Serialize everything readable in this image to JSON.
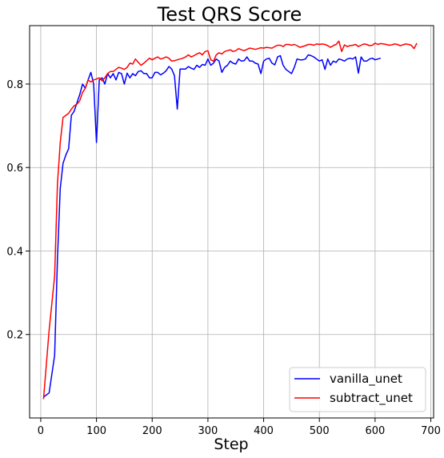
{
  "chart_data": {
    "type": "line",
    "title": "Test QRS Score",
    "xlabel": "Step",
    "ylabel": "",
    "xlim": [
      -20,
      705
    ],
    "ylim": [
      0.0,
      0.94
    ],
    "xticks": [
      0,
      100,
      200,
      300,
      400,
      500,
      600,
      700
    ],
    "yticks": [
      0.2,
      0.4,
      0.6,
      0.8
    ],
    "xtick_labels": [
      "0",
      "100",
      "200",
      "300",
      "400",
      "500",
      "600",
      "700"
    ],
    "ytick_labels": [
      "0.2",
      "0.4",
      "0.6",
      "0.8"
    ],
    "grid": true,
    "legend_position": "bottom-right",
    "series": [
      {
        "name": "vanilla_unet",
        "color": "#0000ff",
        "x": [
          5,
          15,
          25,
          30,
          35,
          40,
          45,
          50,
          55,
          60,
          65,
          70,
          75,
          80,
          85,
          90,
          95,
          100,
          105,
          110,
          115,
          120,
          125,
          130,
          135,
          140,
          145,
          150,
          155,
          160,
          165,
          170,
          175,
          180,
          185,
          190,
          195,
          200,
          205,
          210,
          215,
          220,
          225,
          230,
          235,
          240,
          245,
          250,
          255,
          260,
          265,
          270,
          275,
          280,
          285,
          290,
          295,
          300,
          305,
          310,
          315,
          320,
          325,
          330,
          335,
          340,
          345,
          350,
          355,
          360,
          365,
          370,
          375,
          380,
          385,
          390,
          395,
          400,
          405,
          410,
          415,
          420,
          425,
          430,
          435,
          440,
          445,
          450,
          455,
          460,
          465,
          470,
          475,
          480,
          485,
          490,
          495,
          500,
          505,
          510,
          515,
          520,
          525,
          530,
          535,
          540,
          545,
          550,
          555,
          560,
          565,
          570,
          575,
          580,
          585,
          590,
          595,
          600,
          605,
          610
        ],
        "y": [
          0.05,
          0.06,
          0.15,
          0.38,
          0.55,
          0.61,
          0.63,
          0.645,
          0.725,
          0.735,
          0.755,
          0.775,
          0.8,
          0.79,
          0.81,
          0.828,
          0.8,
          0.66,
          0.81,
          0.815,
          0.8,
          0.825,
          0.815,
          0.825,
          0.81,
          0.828,
          0.825,
          0.8,
          0.826,
          0.815,
          0.825,
          0.82,
          0.83,
          0.832,
          0.825,
          0.825,
          0.815,
          0.815,
          0.828,
          0.828,
          0.822,
          0.826,
          0.832,
          0.842,
          0.836,
          0.82,
          0.74,
          0.836,
          0.836,
          0.836,
          0.842,
          0.838,
          0.835,
          0.845,
          0.84,
          0.847,
          0.845,
          0.86,
          0.845,
          0.85,
          0.86,
          0.855,
          0.828,
          0.84,
          0.845,
          0.855,
          0.85,
          0.848,
          0.86,
          0.855,
          0.856,
          0.865,
          0.855,
          0.855,
          0.85,
          0.848,
          0.825,
          0.855,
          0.86,
          0.862,
          0.85,
          0.846,
          0.865,
          0.868,
          0.845,
          0.835,
          0.83,
          0.825,
          0.84,
          0.86,
          0.858,
          0.858,
          0.86,
          0.87,
          0.868,
          0.865,
          0.86,
          0.855,
          0.858,
          0.835,
          0.86,
          0.845,
          0.855,
          0.852,
          0.86,
          0.858,
          0.855,
          0.86,
          0.862,
          0.86,
          0.865,
          0.826,
          0.865,
          0.855,
          0.855,
          0.86,
          0.862,
          0.858,
          0.86,
          0.862
        ]
      },
      {
        "name": "subtract_unet",
        "color": "#ff0000",
        "x": [
          5,
          15,
          25,
          30,
          35,
          40,
          45,
          50,
          55,
          60,
          65,
          70,
          75,
          80,
          85,
          90,
          95,
          100,
          105,
          110,
          115,
          120,
          125,
          130,
          135,
          140,
          145,
          150,
          155,
          160,
          165,
          170,
          175,
          180,
          185,
          190,
          195,
          200,
          205,
          210,
          215,
          220,
          225,
          230,
          235,
          240,
          245,
          250,
          255,
          260,
          265,
          270,
          275,
          280,
          285,
          290,
          295,
          300,
          305,
          310,
          315,
          320,
          325,
          330,
          335,
          340,
          345,
          350,
          355,
          360,
          365,
          370,
          375,
          380,
          385,
          390,
          395,
          400,
          405,
          410,
          415,
          420,
          425,
          430,
          435,
          440,
          445,
          450,
          455,
          460,
          465,
          470,
          475,
          480,
          485,
          490,
          495,
          500,
          505,
          510,
          515,
          520,
          525,
          530,
          535,
          540,
          545,
          550,
          555,
          560,
          565,
          570,
          575,
          580,
          585,
          590,
          595,
          600,
          605,
          610,
          615,
          620,
          625,
          630,
          635,
          640,
          645,
          650,
          655,
          660,
          665,
          670,
          675
        ],
        "y": [
          0.045,
          0.21,
          0.34,
          0.56,
          0.66,
          0.72,
          0.725,
          0.73,
          0.74,
          0.748,
          0.752,
          0.76,
          0.78,
          0.79,
          0.81,
          0.805,
          0.81,
          0.812,
          0.815,
          0.808,
          0.815,
          0.825,
          0.83,
          0.83,
          0.835,
          0.84,
          0.838,
          0.835,
          0.84,
          0.85,
          0.848,
          0.86,
          0.852,
          0.845,
          0.85,
          0.856,
          0.862,
          0.858,
          0.862,
          0.865,
          0.86,
          0.862,
          0.865,
          0.862,
          0.855,
          0.856,
          0.858,
          0.86,
          0.862,
          0.865,
          0.87,
          0.865,
          0.868,
          0.872,
          0.875,
          0.87,
          0.878,
          0.88,
          0.858,
          0.855,
          0.87,
          0.875,
          0.872,
          0.878,
          0.88,
          0.882,
          0.878,
          0.88,
          0.885,
          0.882,
          0.88,
          0.883,
          0.886,
          0.885,
          0.883,
          0.885,
          0.887,
          0.886,
          0.888,
          0.887,
          0.886,
          0.89,
          0.893,
          0.893,
          0.89,
          0.895,
          0.895,
          0.893,
          0.895,
          0.892,
          0.888,
          0.89,
          0.892,
          0.895,
          0.895,
          0.893,
          0.896,
          0.895,
          0.896,
          0.895,
          0.892,
          0.888,
          0.892,
          0.895,
          0.903,
          0.878,
          0.894,
          0.89,
          0.892,
          0.893,
          0.895,
          0.89,
          0.893,
          0.896,
          0.895,
          0.892,
          0.893,
          0.898,
          0.895,
          0.897,
          0.896,
          0.895,
          0.893,
          0.894,
          0.896,
          0.895,
          0.892,
          0.894,
          0.896,
          0.895,
          0.893,
          0.885,
          0.898
        ]
      }
    ]
  }
}
